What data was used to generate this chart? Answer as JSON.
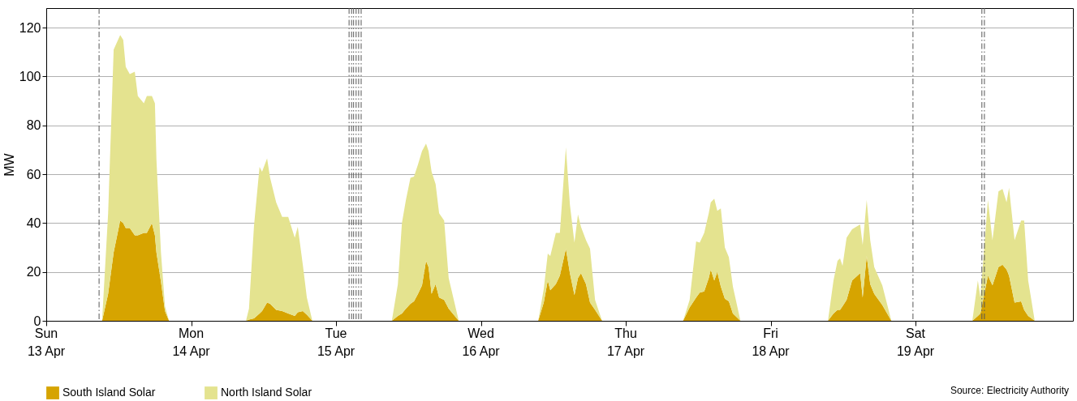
{
  "chart_data": {
    "type": "area",
    "stacked": true,
    "ylabel": "MW",
    "grid": "y",
    "legend": "bottom",
    "annotations": [
      "Source: Electricity Authority"
    ],
    "xlim": [
      "--04-13T00:00",
      "--04-20T02:05"
    ],
    "xticks": [
      {
        "value": "--04-13",
        "label": "Sun\n13 Apr"
      },
      {
        "value": "--04-14",
        "label": "Mon\n14 Apr"
      },
      {
        "value": "--04-15",
        "label": "Tue\n15 Apr"
      },
      {
        "value": "--04-16",
        "label": "Wed\n16 Apr"
      },
      {
        "value": "--04-17",
        "label": "Thu\n17 Apr"
      },
      {
        "value": "--04-18",
        "label": "Fri\n18 Apr"
      },
      {
        "value": "--04-19",
        "label": "Sat\n19 Apr"
      }
    ],
    "ylim": [
      0,
      128
    ],
    "yticks": [
      0,
      20,
      40,
      60,
      80,
      100,
      120
    ],
    "x": [
      "--04-13T09:15",
      "--04-13T10:15",
      "--04-13T11:10",
      "--04-13T12:15",
      "--04-13T12:45",
      "--04-13T13:10",
      "--04-13T13:50",
      "--04-13T14:40",
      "--04-13T15:10",
      "--04-13T16:10",
      "--04-13T16:40",
      "--04-13T17:30",
      "--04-13T18:00",
      "--04-13T18:15",
      "--04-13T19:00",
      "--04-13T19:40",
      "--04-13T20:20",
      "--04-14T09:05",
      "--04-14T09:35",
      "--04-14T10:25",
      "--04-14T11:20",
      "--04-14T11:45",
      "--04-14T12:35",
      "--04-14T13:05",
      "--04-14T14:05",
      "--04-14T15:05",
      "--04-14T16:05",
      "--04-14T17:10",
      "--04-14T17:40",
      "--04-14T18:30",
      "--04-14T19:10",
      "--04-14T20:05",
      "--04-15T09:15",
      "--04-15T10:15",
      "--04-15T10:55",
      "--04-15T11:35",
      "--04-15T12:20",
      "--04-15T12:55",
      "--04-15T13:35",
      "--04-15T14:15",
      "--04-15T14:55",
      "--04-15T15:20",
      "--04-15T15:50",
      "--04-15T16:30",
      "--04-15T17:05",
      "--04-15T17:55",
      "--04-15T18:40",
      "--04-15T20:20",
      "--04-16T09:30",
      "--04-16T10:25",
      "--04-16T11:05",
      "--04-16T11:30",
      "--04-16T12:25",
      "--04-16T13:05",
      "--04-16T14:05",
      "--04-16T14:45",
      "--04-16T15:30",
      "--04-16T16:05",
      "--04-16T16:35",
      "--04-16T17:25",
      "--04-16T18:05",
      "--04-16T18:55",
      "--04-16T20:05",
      "--04-17T09:30",
      "--04-17T10:35",
      "--04-17T11:40",
      "--04-17T12:15",
      "--04-17T13:00",
      "--04-17T13:45",
      "--04-17T14:05",
      "--04-17T14:40",
      "--04-17T15:10",
      "--04-17T15:45",
      "--04-17T16:25",
      "--04-17T17:05",
      "--04-17T17:45",
      "--04-17T19:00",
      "--04-18T09:30",
      "--04-18T10:25",
      "--04-18T11:05",
      "--04-18T11:30",
      "--04-18T11:55",
      "--04-18T12:35",
      "--04-18T13:30",
      "--04-18T14:50",
      "--04-18T15:15",
      "--04-18T15:55",
      "--04-18T16:30",
      "--04-18T17:10",
      "--04-18T18:30",
      "--04-18T20:00",
      "--04-19T09:25",
      "--04-19T10:20",
      "--04-19T10:45",
      "--04-19T12:00",
      "--04-19T12:45",
      "--04-19T13:45",
      "--04-19T14:25",
      "--04-19T15:05",
      "--04-19T15:30",
      "--04-19T16:25",
      "--04-19T17:30",
      "--04-19T18:00",
      "--04-19T18:40",
      "--04-19T19:45"
    ],
    "series": [
      {
        "name": "South Island Solar",
        "color": "#d6a400",
        "values": [
          0,
          11,
          28,
          41,
          40,
          38,
          38,
          35,
          35,
          36,
          36,
          40,
          35,
          28,
          16,
          4,
          0,
          0,
          0.5,
          1,
          3,
          4,
          7.5,
          7,
          4.5,
          4,
          3,
          2,
          3.5,
          4,
          2.5,
          0,
          0,
          2,
          3,
          5,
          7,
          8,
          11,
          14.5,
          24.5,
          22,
          11,
          15,
          9.5,
          8.5,
          5,
          0,
          0,
          7.5,
          16.5,
          12.5,
          15,
          18.5,
          29.5,
          19.5,
          10.5,
          17.5,
          19.5,
          15,
          7.5,
          4.5,
          0,
          0,
          5.5,
          9.5,
          11.5,
          12,
          17.5,
          21,
          16.5,
          20,
          14,
          9,
          8,
          3,
          0,
          0,
          3,
          4.5,
          4.5,
          6,
          8.5,
          16.5,
          19.5,
          9.5,
          26.5,
          15,
          11,
          6.5,
          0,
          0,
          2,
          3,
          18.5,
          14.5,
          22,
          23,
          21,
          18.5,
          7.5,
          8,
          4.5,
          2,
          0
        ]
      },
      {
        "name": "North Island Solar",
        "color": "#e4e38f",
        "values": [
          0,
          33,
          83,
          76,
          75,
          66,
          63,
          67,
          57,
          53,
          56,
          52,
          54,
          38,
          12,
          2,
          0,
          0,
          4.5,
          38,
          60,
          57,
          59,
          51.5,
          44,
          38.5,
          39.5,
          32,
          35,
          19,
          7,
          0,
          0,
          13,
          37,
          44.5,
          51.5,
          51,
          53,
          55,
          48,
          47.5,
          50,
          41,
          34.5,
          32.5,
          12.5,
          0,
          0,
          5.5,
          11,
          14,
          21,
          17.5,
          41.5,
          28,
          21.5,
          26,
          19,
          18,
          22,
          4,
          0,
          0,
          3,
          23,
          20.5,
          24,
          26.5,
          27.5,
          33.5,
          25,
          32,
          21,
          18,
          11,
          0,
          0,
          13.5,
          20,
          21,
          16.5,
          25.5,
          21,
          20,
          21.5,
          23,
          18,
          11,
          8,
          0,
          0,
          14.5,
          6.5,
          31,
          18.5,
          31,
          31,
          27.5,
          36,
          25.5,
          33,
          36.5,
          14.5,
          0
        ]
      }
    ],
    "ref_lines": [
      {
        "axis": "x",
        "value": "--04-13T08:45",
        "color": "#555555",
        "line_style": "dashed"
      },
      {
        "axis": "x",
        "value": "--04-15T02:10",
        "color": "#555555",
        "line_style": "dashed"
      },
      {
        "axis": "x",
        "value": "--04-15T02:35",
        "color": "#555555",
        "line_style": "dashed"
      },
      {
        "axis": "x",
        "value": "--04-15T02:55",
        "color": "#555555",
        "line_style": "dashed"
      },
      {
        "axis": "x",
        "value": "--04-15T03:20",
        "color": "#555555",
        "line_style": "dashed"
      },
      {
        "axis": "x",
        "value": "--04-15T03:45",
        "color": "#555555",
        "line_style": "dashed"
      },
      {
        "axis": "x",
        "value": "--04-15T04:10",
        "color": "#555555",
        "line_style": "dashed"
      },
      {
        "axis": "x",
        "value": "--04-18T23:35",
        "color": "#555555",
        "line_style": "dashed"
      },
      {
        "axis": "x",
        "value": "--04-19T11:00",
        "color": "#555555",
        "line_style": "dashed"
      },
      {
        "axis": "x",
        "value": "--04-19T11:25",
        "color": "#555555",
        "line_style": "dashed"
      }
    ]
  }
}
